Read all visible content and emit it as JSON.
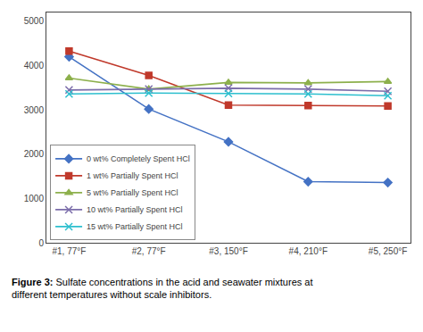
{
  "chart_data": {
    "type": "line",
    "categories": [
      "#1, 77°F",
      "#2, 77°F",
      "#3, 150°F",
      "#4, 210°F",
      "#5, 250°F"
    ],
    "series": [
      {
        "name": "0 wt% Completely Spent HCl",
        "color": "#4472C4",
        "marker": "diamond",
        "values": [
          4200,
          3020,
          2280,
          1380,
          1360
        ]
      },
      {
        "name": "1 wt% Partially Spent HCl",
        "color": "#C0392B",
        "marker": "square",
        "values": [
          4330,
          3780,
          3110,
          3100,
          3090
        ]
      },
      {
        "name": "5 wt% Partially Spent HCl",
        "color": "#8DB04C",
        "marker": "triangle",
        "values": [
          3720,
          3470,
          3620,
          3610,
          3640
        ]
      },
      {
        "name": "10 wt% Partially Spent HCl",
        "color": "#7B6DAA",
        "marker": "x",
        "values": [
          3450,
          3470,
          3490,
          3470,
          3420
        ]
      },
      {
        "name": "15 wt% Partially Spent HCl",
        "color": "#2DBFCE",
        "marker": "x",
        "values": [
          3360,
          3380,
          3370,
          3360,
          3320
        ]
      }
    ],
    "ylim": [
      0,
      5200
    ],
    "yticks": [
      0,
      1000,
      2000,
      3000,
      4000,
      5000
    ],
    "grid": false,
    "legend": "lower left",
    "annotations": [
      "Figure 3:",
      "Sulfate concentrations in the acid and seawater mixtures at",
      "different temperatures without scale inhibitors."
    ]
  }
}
